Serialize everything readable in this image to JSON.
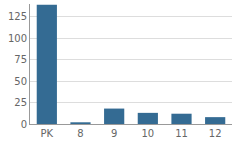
{
  "chart_data": {
    "type": "bar",
    "categories": [
      "PK",
      "8",
      "9",
      "10",
      "11",
      "12"
    ],
    "values": [
      139,
      2,
      18,
      13,
      12,
      8
    ],
    "color": "#346b93",
    "ylim": [
      0,
      140
    ],
    "yticks": [
      0,
      25,
      50,
      75,
      100,
      125
    ],
    "grid": true
  }
}
